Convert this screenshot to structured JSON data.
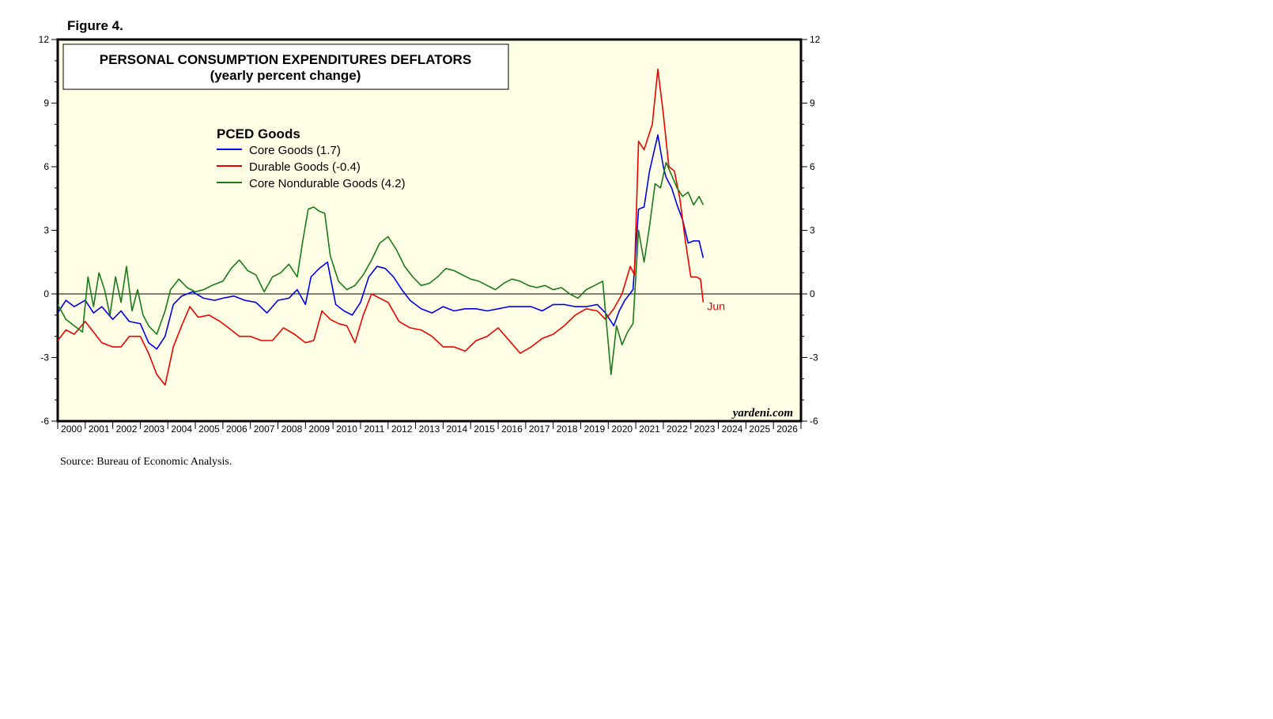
{
  "figure_label": "Figure 4.",
  "source_note": "Source: Bureau of Economic Analysis.",
  "watermark": "yardeni.com",
  "colors": {
    "plot_bg": "#ffffe6",
    "core_goods": "#0000ee",
    "durable_goods": "#ee0000",
    "core_nondurable_goods": "#1a7a1a",
    "jun_label": "#ee0000"
  },
  "chart_data": {
    "type": "line",
    "title": "PERSONAL CONSUMPTION EXPENDITURES DEFLATORS",
    "subtitle": "(yearly percent change)",
    "legend_title": "PCED Goods",
    "legend_placement": "top-left",
    "xlabel": "",
    "ylabel": "",
    "xlim": [
      2000.0,
      2027.0
    ],
    "ylim": [
      -6,
      12
    ],
    "yticks": [
      -6,
      -3,
      0,
      3,
      6,
      9,
      12
    ],
    "year_labels": [
      "2000",
      "2001",
      "2002",
      "2003",
      "2004",
      "2005",
      "2006",
      "2007",
      "2008",
      "2009",
      "2010",
      "2011",
      "2012",
      "2013",
      "2014",
      "2015",
      "2016",
      "2017",
      "2018",
      "2019",
      "2020",
      "2021",
      "2022",
      "2023",
      "2024",
      "2025",
      "2026"
    ],
    "annotation": {
      "text": "Jun",
      "x": 2023.45,
      "y": -0.4
    },
    "series": [
      {
        "name": "Core Goods",
        "legend": "Core Goods  (1.7)",
        "color_key": "core_goods",
        "x": [
          2000.0,
          2000.3,
          2000.6,
          2001.0,
          2001.3,
          2001.6,
          2002.0,
          2002.3,
          2002.6,
          2003.0,
          2003.3,
          2003.6,
          2003.9,
          2004.2,
          2004.5,
          2004.9,
          2005.3,
          2005.7,
          2006.0,
          2006.4,
          2006.8,
          2007.2,
          2007.6,
          2008.0,
          2008.4,
          2008.7,
          2009.0,
          2009.2,
          2009.5,
          2009.8,
          2010.1,
          2010.4,
          2010.7,
          2011.0,
          2011.3,
          2011.6,
          2011.9,
          2012.2,
          2012.5,
          2012.8,
          2013.2,
          2013.6,
          2014.0,
          2014.4,
          2014.8,
          2015.2,
          2015.6,
          2016.0,
          2016.4,
          2016.8,
          2017.2,
          2017.6,
          2018.0,
          2018.4,
          2018.8,
          2019.2,
          2019.6,
          2019.9,
          2020.2,
          2020.4,
          2020.6,
          2020.9,
          2021.1,
          2021.3,
          2021.5,
          2021.8,
          2022.0,
          2022.1,
          2022.3,
          2022.5,
          2022.7,
          2022.9,
          2023.1,
          2023.3,
          2023.45
        ],
        "y": [
          -0.9,
          -0.3,
          -0.6,
          -0.3,
          -0.9,
          -0.6,
          -1.2,
          -0.8,
          -1.3,
          -1.4,
          -2.3,
          -2.6,
          -2.0,
          -0.5,
          -0.1,
          0.1,
          -0.2,
          -0.3,
          -0.2,
          -0.1,
          -0.3,
          -0.4,
          -0.9,
          -0.3,
          -0.2,
          0.2,
          -0.5,
          0.8,
          1.2,
          1.5,
          -0.5,
          -0.8,
          -1.0,
          -0.4,
          0.8,
          1.3,
          1.2,
          0.8,
          0.2,
          -0.3,
          -0.7,
          -0.9,
          -0.6,
          -0.8,
          -0.7,
          -0.7,
          -0.8,
          -0.7,
          -0.6,
          -0.6,
          -0.6,
          -0.8,
          -0.5,
          -0.5,
          -0.6,
          -0.6,
          -0.5,
          -0.9,
          -1.5,
          -0.8,
          -0.3,
          0.2,
          4.0,
          4.1,
          5.8,
          7.5,
          6.0,
          5.5,
          5.0,
          4.2,
          3.5,
          2.4,
          2.5,
          2.5,
          1.7
        ]
      },
      {
        "name": "Durable Goods",
        "legend": "Durable Goods (-0.4)",
        "color_key": "durable_goods",
        "x": [
          2000.0,
          2000.3,
          2000.6,
          2001.0,
          2001.3,
          2001.6,
          2002.0,
          2002.3,
          2002.6,
          2003.0,
          2003.3,
          2003.6,
          2003.9,
          2004.2,
          2004.5,
          2004.8,
          2005.1,
          2005.5,
          2005.9,
          2006.2,
          2006.6,
          2007.0,
          2007.4,
          2007.8,
          2008.2,
          2008.6,
          2009.0,
          2009.3,
          2009.6,
          2009.9,
          2010.2,
          2010.5,
          2010.8,
          2011.1,
          2011.4,
          2011.7,
          2012.0,
          2012.4,
          2012.8,
          2013.2,
          2013.6,
          2014.0,
          2014.4,
          2014.8,
          2015.2,
          2015.6,
          2016.0,
          2016.4,
          2016.8,
          2017.2,
          2017.6,
          2018.0,
          2018.4,
          2018.8,
          2019.2,
          2019.6,
          2019.9,
          2020.2,
          2020.5,
          2020.8,
          2020.95,
          2021.1,
          2021.3,
          2021.6,
          2021.8,
          2022.0,
          2022.2,
          2022.4,
          2022.6,
          2022.8,
          2023.0,
          2023.2,
          2023.35,
          2023.45
        ],
        "y": [
          -2.2,
          -1.7,
          -1.9,
          -1.3,
          -1.8,
          -2.3,
          -2.5,
          -2.5,
          -2.0,
          -2.0,
          -2.8,
          -3.8,
          -4.3,
          -2.5,
          -1.5,
          -0.6,
          -1.1,
          -1.0,
          -1.3,
          -1.6,
          -2.0,
          -2.0,
          -2.2,
          -2.2,
          -1.6,
          -1.9,
          -2.3,
          -2.2,
          -0.8,
          -1.2,
          -1.4,
          -1.5,
          -2.3,
          -1.0,
          0.0,
          -0.2,
          -0.4,
          -1.3,
          -1.6,
          -1.7,
          -2.0,
          -2.5,
          -2.5,
          -2.7,
          -2.2,
          -2.0,
          -1.6,
          -2.2,
          -2.8,
          -2.5,
          -2.1,
          -1.9,
          -1.5,
          -1.0,
          -0.7,
          -0.8,
          -1.2,
          -0.7,
          0.0,
          1.3,
          0.9,
          7.2,
          6.8,
          8.0,
          10.6,
          8.5,
          6.0,
          5.8,
          4.5,
          2.5,
          0.8,
          0.8,
          0.7,
          -0.4
        ]
      },
      {
        "name": "Core Nondurable Goods",
        "legend": "Core Nondurable Goods (4.2)",
        "color_key": "core_nondurable_goods",
        "x": [
          2000.0,
          2000.3,
          2000.6,
          2000.9,
          2001.1,
          2001.3,
          2001.5,
          2001.7,
          2001.9,
          2002.1,
          2002.3,
          2002.5,
          2002.7,
          2002.9,
          2003.1,
          2003.3,
          2003.6,
          2003.9,
          2004.1,
          2004.4,
          2004.7,
          2005.0,
          2005.3,
          2005.6,
          2006.0,
          2006.3,
          2006.6,
          2006.9,
          2007.2,
          2007.5,
          2007.8,
          2008.1,
          2008.4,
          2008.7,
          2008.9,
          2009.1,
          2009.3,
          2009.5,
          2009.7,
          2009.9,
          2010.2,
          2010.5,
          2010.8,
          2011.1,
          2011.4,
          2011.7,
          2012.0,
          2012.3,
          2012.6,
          2012.9,
          2013.2,
          2013.5,
          2013.8,
          2014.1,
          2014.4,
          2014.7,
          2015.0,
          2015.3,
          2015.6,
          2015.9,
          2016.2,
          2016.5,
          2016.8,
          2017.1,
          2017.4,
          2017.7,
          2018.0,
          2018.3,
          2018.6,
          2018.9,
          2019.2,
          2019.5,
          2019.8,
          2020.1,
          2020.3,
          2020.5,
          2020.7,
          2020.9,
          2021.1,
          2021.3,
          2021.5,
          2021.7,
          2021.9,
          2022.1,
          2022.3,
          2022.5,
          2022.7,
          2022.9,
          2023.1,
          2023.3,
          2023.45
        ],
        "y": [
          -0.5,
          -1.2,
          -1.5,
          -1.8,
          0.8,
          -0.6,
          1.0,
          0.2,
          -1.0,
          0.8,
          -0.4,
          1.3,
          -0.8,
          0.2,
          -1.0,
          -1.5,
          -1.9,
          -0.8,
          0.2,
          0.7,
          0.3,
          0.1,
          0.2,
          0.4,
          0.6,
          1.2,
          1.6,
          1.1,
          0.9,
          0.1,
          0.8,
          1.0,
          1.4,
          0.8,
          2.5,
          4.0,
          4.1,
          3.9,
          3.8,
          1.8,
          0.6,
          0.2,
          0.4,
          0.9,
          1.6,
          2.4,
          2.7,
          2.1,
          1.3,
          0.8,
          0.4,
          0.5,
          0.8,
          1.2,
          1.1,
          0.9,
          0.7,
          0.6,
          0.4,
          0.2,
          0.5,
          0.7,
          0.6,
          0.4,
          0.3,
          0.4,
          0.2,
          0.3,
          0.0,
          -0.2,
          0.2,
          0.4,
          0.6,
          -3.8,
          -1.5,
          -2.4,
          -1.8,
          -1.4,
          3.0,
          1.5,
          3.2,
          5.2,
          5.0,
          6.2,
          5.6,
          5.0,
          4.6,
          4.8,
          4.2,
          4.6,
          4.2
        ]
      }
    ]
  }
}
